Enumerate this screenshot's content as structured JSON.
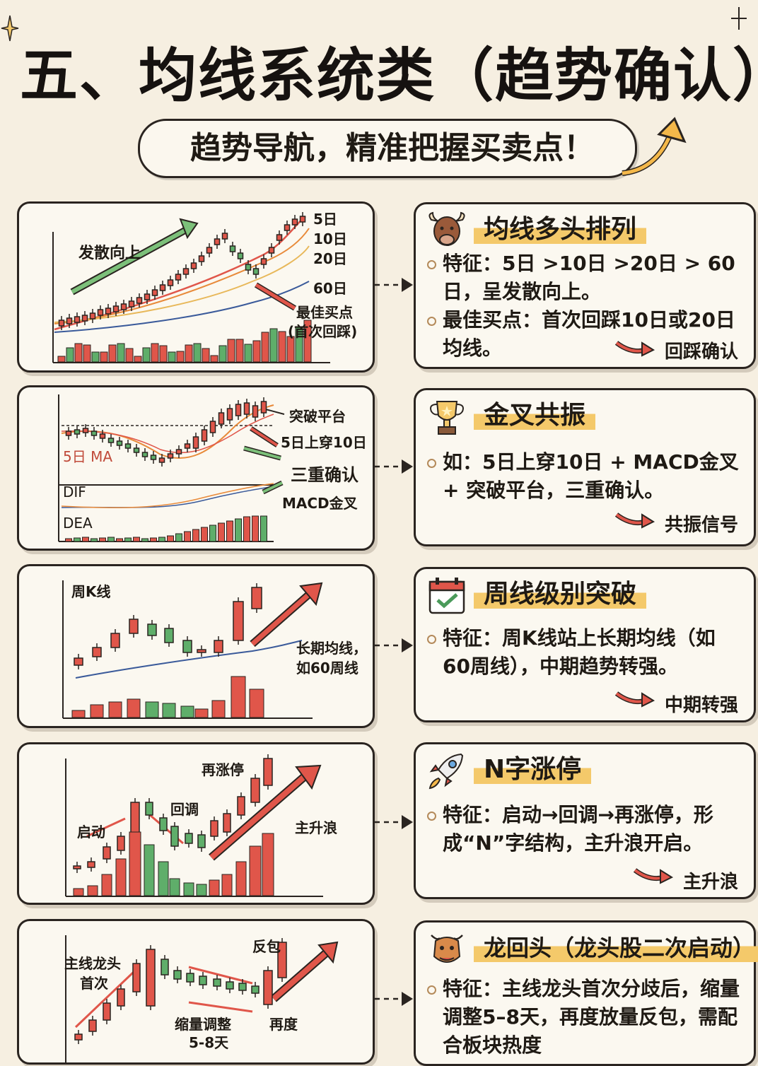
{
  "header": {
    "title": "五、均线系统类（趋势确认）",
    "subtitle": "趋势导航，精准把握买卖点！"
  },
  "cards": [
    {
      "title": "均线多头排列",
      "icon": "bull-icon",
      "bullets": [
        "特征：5日 >10日 >20日 > 60日，呈发散向上。",
        "最佳买点：首次回踩10日或20日均线。"
      ],
      "tag": "回踩确认"
    },
    {
      "title": "金叉共振",
      "icon": "trophy-icon",
      "bullets": [
        "如：5日上穿10日 + MACD金叉 + 突破平台，三重确认。"
      ],
      "tag": "共振信号"
    },
    {
      "title": "周线级别突破",
      "icon": "calendar-check-icon",
      "bullets": [
        "特征：周K线站上长期均线（如60周线），中期趋势转强。"
      ],
      "tag": "中期转强"
    },
    {
      "title": "N字涨停",
      "icon": "rocket-icon",
      "bullets": [
        "特征：启动→回调→再涨停，形成“N”字结构，主升浪开启。"
      ],
      "tag": "主升浪"
    },
    {
      "title": "龙回头（龙头股二次启动）",
      "icon": "dragon-icon",
      "bullets": [
        "特征：主线龙头首次分歧后，缩量调整5–8天，再度放量反包，需配合板块热度"
      ],
      "tag": ""
    }
  ],
  "charts": {
    "c1": {
      "labels": {
        "spread_up": "发散向上",
        "ma5": "5日",
        "ma10": "10日",
        "ma20": "20日",
        "ma60": "60日",
        "best_buy": "最佳买点",
        "first_pullback": "(首次回踩)"
      }
    },
    "c2": {
      "labels": {
        "platform_break": "突破平台",
        "ma5_cross": "5日上穿10日",
        "triple": "三重确认",
        "macd_cross": "MACD金叉",
        "ma5_label": "5日 MA",
        "dif": "DIF",
        "dea": "DEA"
      }
    },
    "c3": {
      "labels": {
        "weekly_k": "周K线",
        "long_ma": "长期均线，",
        "ma60w": "如60周线"
      }
    },
    "c4": {
      "labels": {
        "limit_up_again": "再涨停",
        "pullback": "回调",
        "start": "启动",
        "main_wave": "主升浪"
      }
    },
    "c5": {
      "labels": {
        "leader_first": "主线龙头",
        "first_time": "首次",
        "reverse": "反包",
        "shrink": "缩量调整",
        "days": "5-8天",
        "again": "再度"
      }
    }
  },
  "colors": {
    "red": "#e0564a",
    "green": "#5fae6a",
    "gold": "#f4c96a",
    "ink": "#2a2420",
    "ma_orange": "#e88a3a",
    "ma_yellow": "#e8b85a",
    "ma_blue": "#3a5a9a"
  }
}
